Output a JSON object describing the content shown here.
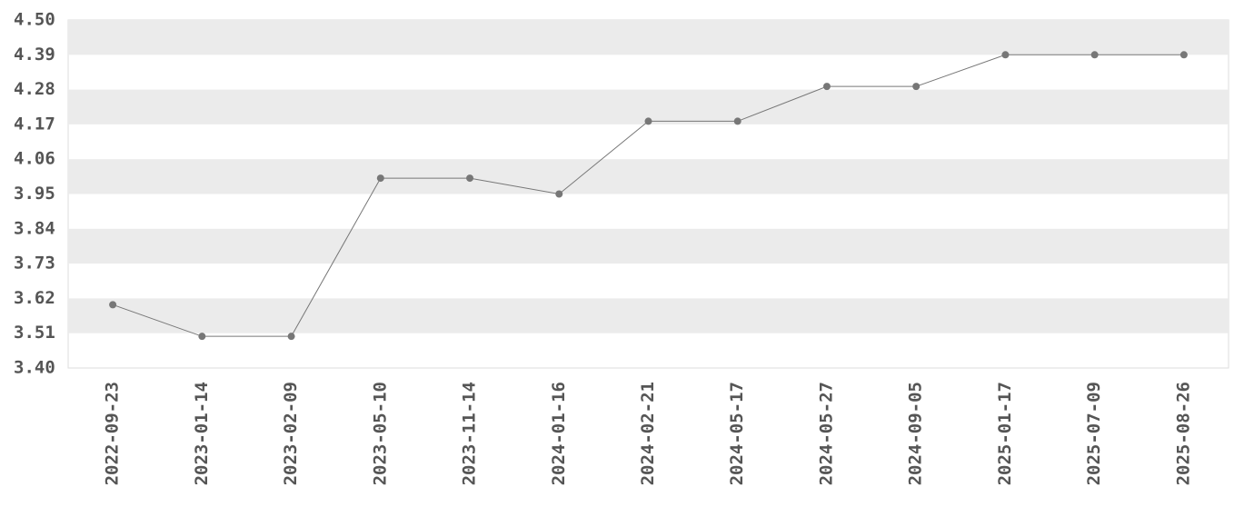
{
  "chart_data": {
    "type": "line",
    "categories": [
      "2022-09-23",
      "2023-01-14",
      "2023-02-09",
      "2023-05-10",
      "2023-11-14",
      "2024-01-16",
      "2024-02-21",
      "2024-05-17",
      "2024-05-27",
      "2024-09-05",
      "2025-01-17",
      "2025-07-09",
      "2025-08-26"
    ],
    "values": [
      3.6,
      3.5,
      3.5,
      4.0,
      4.0,
      3.95,
      4.18,
      4.18,
      4.29,
      4.29,
      4.39,
      4.39,
      4.39
    ],
    "color": "#777777",
    "ylim": [
      3.4,
      4.5
    ],
    "yticks": [
      {
        "value": 3.4,
        "label": "3.40"
      },
      3.51,
      3.62,
      3.73,
      3.84,
      3.95,
      4.06,
      4.17,
      4.28,
      4.39,
      {
        "value": 4.5,
        "label": "4.50"
      }
    ],
    "grid": true
  }
}
